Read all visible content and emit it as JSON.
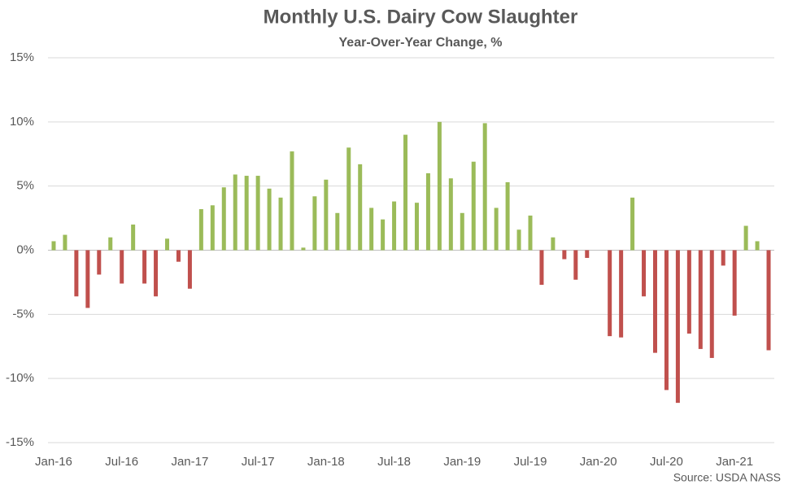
{
  "chart_data": {
    "type": "bar",
    "title": "Monthly U.S. Dairy Cow Slaughter",
    "subtitle": "Year-Over-Year Change, %",
    "source": "Source: USDA NASS",
    "categories": [
      "Jan-16",
      null,
      null,
      null,
      null,
      null,
      "Jul-16",
      null,
      null,
      null,
      null,
      null,
      "Jan-17",
      null,
      null,
      null,
      null,
      null,
      "Jul-17",
      null,
      null,
      null,
      null,
      null,
      "Jan-18",
      null,
      null,
      null,
      null,
      null,
      "Jul-18",
      null,
      null,
      null,
      null,
      null,
      "Jan-19",
      null,
      null,
      null,
      null,
      null,
      "Jul-19",
      null,
      null,
      null,
      null,
      null,
      "Jan-20",
      null,
      null,
      null,
      null,
      null,
      "Jul-20",
      null,
      null,
      null,
      null,
      null,
      "Jan-21",
      null,
      null,
      null
    ],
    "values": [
      0.7,
      1.2,
      -3.6,
      -4.5,
      -1.9,
      1.0,
      -2.6,
      2.0,
      -2.6,
      -3.6,
      0.9,
      -0.9,
      -3.0,
      3.2,
      3.5,
      4.9,
      5.9,
      5.8,
      5.8,
      4.8,
      4.1,
      7.7,
      0.2,
      4.2,
      5.5,
      2.9,
      8.0,
      6.7,
      3.3,
      2.4,
      3.8,
      9.0,
      3.7,
      6.0,
      10.0,
      5.6,
      2.9,
      6.9,
      9.9,
      3.3,
      5.3,
      1.6,
      2.7,
      -2.7,
      1.0,
      -0.7,
      -2.3,
      -0.6,
      0,
      -6.7,
      -6.8,
      4.1,
      -3.6,
      -8.0,
      -10.9,
      -11.9,
      -6.5,
      -7.7,
      -8.4,
      -1.2,
      -5.1,
      1.9,
      0.7,
      -7.8
    ],
    "positive_color": "#9bbb59",
    "negative_color": "#c0504d",
    "ylim": [
      -15,
      15
    ],
    "yticks": [
      {
        "value": -15,
        "label": "-15%"
      },
      {
        "value": -10,
        "label": "-10%"
      },
      {
        "value": -5,
        "label": "-5%"
      },
      {
        "value": 0,
        "label": "0%"
      },
      {
        "value": 5,
        "label": "5%"
      },
      {
        "value": 10,
        "label": "10%"
      },
      {
        "value": 15,
        "label": "15%"
      }
    ],
    "grid": true
  }
}
